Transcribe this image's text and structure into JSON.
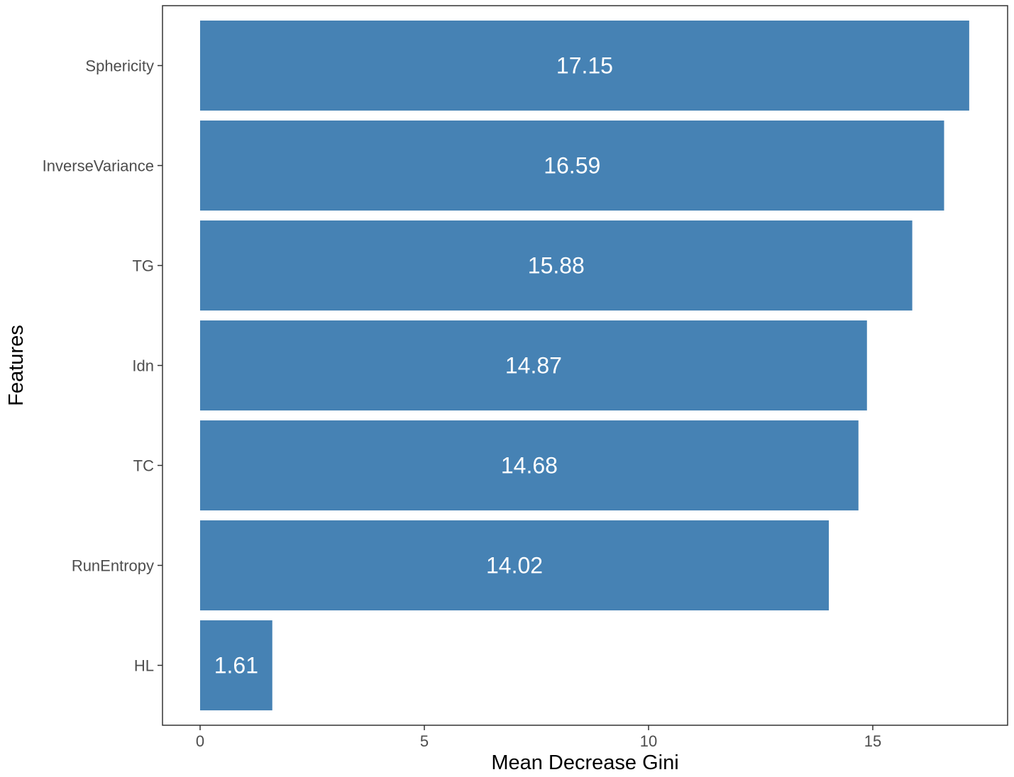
{
  "chart_data": {
    "type": "bar",
    "orientation": "horizontal",
    "categories": [
      "Sphericity",
      "InverseVariance",
      "TG",
      "Idn",
      "TC",
      "RunEntropy",
      "HL"
    ],
    "values": [
      17.15,
      16.59,
      15.88,
      14.87,
      14.68,
      14.02,
      1.61
    ],
    "data_labels": [
      "17.15",
      "16.59",
      "15.88",
      "14.87",
      "14.68",
      "14.02",
      "1.61"
    ],
    "xlabel": "Mean Decrease Gini",
    "ylabel": "Features",
    "xlim": [
      -0.86,
      18.01
    ],
    "xticks": [
      0,
      5,
      10,
      15
    ],
    "xtick_labels": [
      "0",
      "5",
      "10",
      "15"
    ],
    "grid": false,
    "legend": "none",
    "colors": {
      "bar": "#4682B4",
      "panel_border": "#333333",
      "tick_text": "#4d4d4d"
    }
  }
}
